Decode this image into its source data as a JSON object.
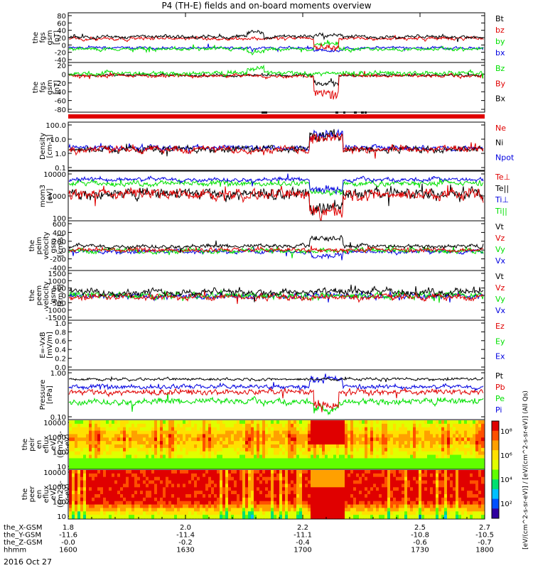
{
  "title": "P4 (TH-E) fields and on-board moments overview",
  "date_label": "2016 Oct 27",
  "colors": {
    "black": "#000000",
    "red": "#e00000",
    "green": "#00e000",
    "blue": "#0000e0"
  },
  "chart_data": [
    {
      "type": "line",
      "ylabel": [
        "the",
        "fgs",
        "gsm",
        "[nT]"
      ],
      "yticks": [
        "80",
        "60",
        "40",
        "20",
        "0",
        "-20",
        "-40"
      ],
      "ylim": [
        -40,
        80
      ],
      "series": [
        {
          "name": "Bt",
          "color": "#000000",
          "base": 22,
          "noise": 4,
          "events": [
            [
              0.43,
              0.47,
              12
            ],
            [
              0.59,
              0.66,
              6
            ]
          ]
        },
        {
          "name": "bz",
          "color": "#e00000",
          "base": 18,
          "noise": 4,
          "events": [
            [
              0.59,
              0.65,
              -22
            ]
          ]
        },
        {
          "name": "by",
          "color": "#00e000",
          "base": -8,
          "noise": 4,
          "events": [
            [
              0.43,
              0.47,
              -8
            ],
            [
              0.59,
              0.65,
              14
            ]
          ]
        },
        {
          "name": "bx",
          "color": "#0000e0",
          "base": -5,
          "noise": 3,
          "events": [
            [
              0.59,
              0.66,
              -6
            ]
          ]
        }
      ]
    },
    {
      "type": "line",
      "ylabel": [
        "the",
        "fgs",
        "gsm",
        "[nT]"
      ],
      "yticks": [
        "20",
        "0",
        "-20",
        "-40",
        "-60",
        "-80"
      ],
      "ylim": [
        -90,
        25
      ],
      "series": [
        {
          "name": "Bz",
          "color": "#00e000",
          "base": 0,
          "noise": 5,
          "events": [
            [
              0.43,
              0.47,
              12
            ]
          ]
        },
        {
          "name": "By",
          "color": "#e00000",
          "base": -6,
          "noise": 4,
          "events": [
            [
              0.59,
              0.65,
              -45
            ]
          ]
        },
        {
          "name": "Bx",
          "color": "#000000",
          "base": -5,
          "noise": 3,
          "events": [
            [
              0.59,
              0.65,
              -20
            ]
          ]
        }
      ]
    },
    {
      "type": "line",
      "ylabel": [
        "Density",
        "[cm-3]"
      ],
      "yticks": [
        "100.0",
        "10.0",
        "1.0",
        "0.1"
      ],
      "ylim": [
        -1,
        2
      ],
      "log": true,
      "series": [
        {
          "name": "Ne",
          "color": "#e00000",
          "base": 0.3,
          "noise": 0.2,
          "events": [
            [
              0.58,
              0.66,
              0.8
            ]
          ]
        },
        {
          "name": "Ni",
          "color": "#000000",
          "base": 0.32,
          "noise": 0.2,
          "events": [
            [
              0.58,
              0.66,
              0.85
            ]
          ]
        },
        {
          "name": "Npot",
          "color": "#0000e0",
          "base": 0.4,
          "noise": 0.15,
          "events": [
            [
              0.58,
              0.66,
              0.9
            ]
          ]
        }
      ]
    },
    {
      "type": "line",
      "ylabel": [
        "mom3",
        "[eV]"
      ],
      "yticks": [
        "10000",
        "1000",
        "100"
      ],
      "ylim": [
        1.6,
        4
      ],
      "log": true,
      "series": [
        {
          "name": "Te⊥",
          "color": "#e00000",
          "base": 2.9,
          "noise": 0.25,
          "events": [
            [
              0.58,
              0.66,
              -0.9
            ]
          ]
        },
        {
          "name": "Te||",
          "color": "#000000",
          "base": 2.9,
          "noise": 0.25,
          "events": [
            [
              0.58,
              0.66,
              -0.8
            ]
          ]
        },
        {
          "name": "Ti⊥",
          "color": "#0000e0",
          "base": 3.6,
          "noise": 0.1,
          "events": [
            [
              0.58,
              0.66,
              -0.5
            ]
          ]
        },
        {
          "name": "Ti||",
          "color": "#00e000",
          "base": 3.4,
          "noise": 0.12,
          "events": [
            [
              0.58,
              0.66,
              -0.4
            ]
          ]
        }
      ]
    },
    {
      "type": "line",
      "ylabel": [
        "the",
        "peim",
        "velocity",
        "gsm",
        "[km/s]"
      ],
      "yticks": [
        "600",
        "400",
        "200",
        "0",
        "-200",
        "-400"
      ],
      "ylim": [
        -400,
        600
      ],
      "series": [
        {
          "name": "Vt",
          "color": "#000000",
          "base": 90,
          "noise": 40,
          "events": [
            [
              0.58,
              0.66,
              160
            ]
          ]
        },
        {
          "name": "Vz",
          "color": "#e00000",
          "base": 10,
          "noise": 40,
          "events": []
        },
        {
          "name": "Vy",
          "color": "#00e000",
          "base": 0,
          "noise": 50,
          "events": []
        },
        {
          "name": "Vx",
          "color": "#0000e0",
          "base": -20,
          "noise": 40,
          "events": [
            [
              0.58,
              0.66,
              -80
            ]
          ]
        }
      ]
    },
    {
      "type": "line",
      "ylabel": [
        "the",
        "peem",
        "velocity",
        "gsm",
        "[km/s]"
      ],
      "yticks": [
        "1500",
        "1000",
        "500",
        "0",
        "-500",
        "-1000",
        "-1500"
      ],
      "ylim": [
        -1500,
        1500
      ],
      "series": [
        {
          "name": "Vt",
          "color": "#000000",
          "base": 200,
          "noise": 200,
          "events": []
        },
        {
          "name": "Vz",
          "color": "#e00000",
          "base": -100,
          "noise": 180,
          "events": []
        },
        {
          "name": "Vy",
          "color": "#00e000",
          "base": 0,
          "noise": 200,
          "events": []
        },
        {
          "name": "Vx",
          "color": "#0000e0",
          "base": -50,
          "noise": 160,
          "events": []
        }
      ]
    },
    {
      "type": "line",
      "ylabel": [
        "E=-VxB",
        "[mV/m]"
      ],
      "yticks": [
        "1.0",
        "0.8",
        "0.6",
        "0.4",
        "0.2",
        "0.0"
      ],
      "ylim": [
        0,
        1
      ],
      "series": [
        {
          "name": "Ez",
          "color": "#e00000",
          "base": 0,
          "noise": 0,
          "events": []
        },
        {
          "name": "Ey",
          "color": "#00e000",
          "base": 0,
          "noise": 0,
          "events": []
        },
        {
          "name": "Ex",
          "color": "#0000e0",
          "base": 0,
          "noise": 0,
          "events": []
        }
      ]
    },
    {
      "type": "line",
      "ylabel": [
        "Pressure",
        "[nPa]"
      ],
      "yticks": [
        "1.00",
        "0.10"
      ],
      "ylim": [
        -1.6,
        0.3
      ],
      "log": true,
      "series": [
        {
          "name": "Pt",
          "color": "#000000",
          "base": -0.05,
          "noise": 0.05,
          "events": []
        },
        {
          "name": "Pb",
          "color": "#e00000",
          "base": -0.55,
          "noise": 0.1,
          "events": [
            [
              0.59,
              0.65,
              -0.5
            ]
          ]
        },
        {
          "name": "Pe",
          "color": "#00e000",
          "base": -0.9,
          "noise": 0.12,
          "events": [
            [
              0.59,
              0.65,
              -0.3
            ]
          ]
        },
        {
          "name": "Pi",
          "color": "#0000e0",
          "base": -0.35,
          "noise": 0.08,
          "events": [
            [
              0.58,
              0.66,
              0.3
            ]
          ]
        }
      ]
    },
    {
      "type": "heatmap",
      "ylabel": [
        "the",
        "peir",
        "en",
        "eflux",
        "eV/",
        "(cm2-s-",
        "sr-eV)"
      ],
      "yticks": [
        "10000",
        "1000",
        "100",
        "10"
      ]
    },
    {
      "type": "heatmap",
      "ylabel": [
        "the",
        "peer",
        "en",
        "eflux",
        "eV/",
        "(cm2-s-",
        "sr-eV)"
      ],
      "yticks": [
        "10000",
        "1000",
        "100",
        "10"
      ]
    }
  ],
  "colorbar": {
    "ticks": [
      "10⁸",
      "10⁶",
      "10⁴",
      "10²"
    ],
    "label": "[eV/(cm^2-s-sr-eV)] / [eV/(cm^2-s-sr-eV)] (All Qs)"
  },
  "xaxis": {
    "rows": [
      {
        "name": "the_X-GSM",
        "values": [
          "1.8",
          "2.0",
          "2.2",
          "2.5",
          "2.7"
        ]
      },
      {
        "name": "the_Y-GSM",
        "values": [
          "-11.6",
          "-11.4",
          "-11.1",
          "-10.8",
          "-10.5"
        ]
      },
      {
        "name": "the_Z-GSM",
        "values": [
          "-0.0",
          "-0.2",
          "-0.4",
          "-0.6",
          "-0.7"
        ]
      },
      {
        "name": "hhmm",
        "values": [
          "1600",
          "1630",
          "1700",
          "1730",
          "1800"
        ]
      }
    ]
  }
}
